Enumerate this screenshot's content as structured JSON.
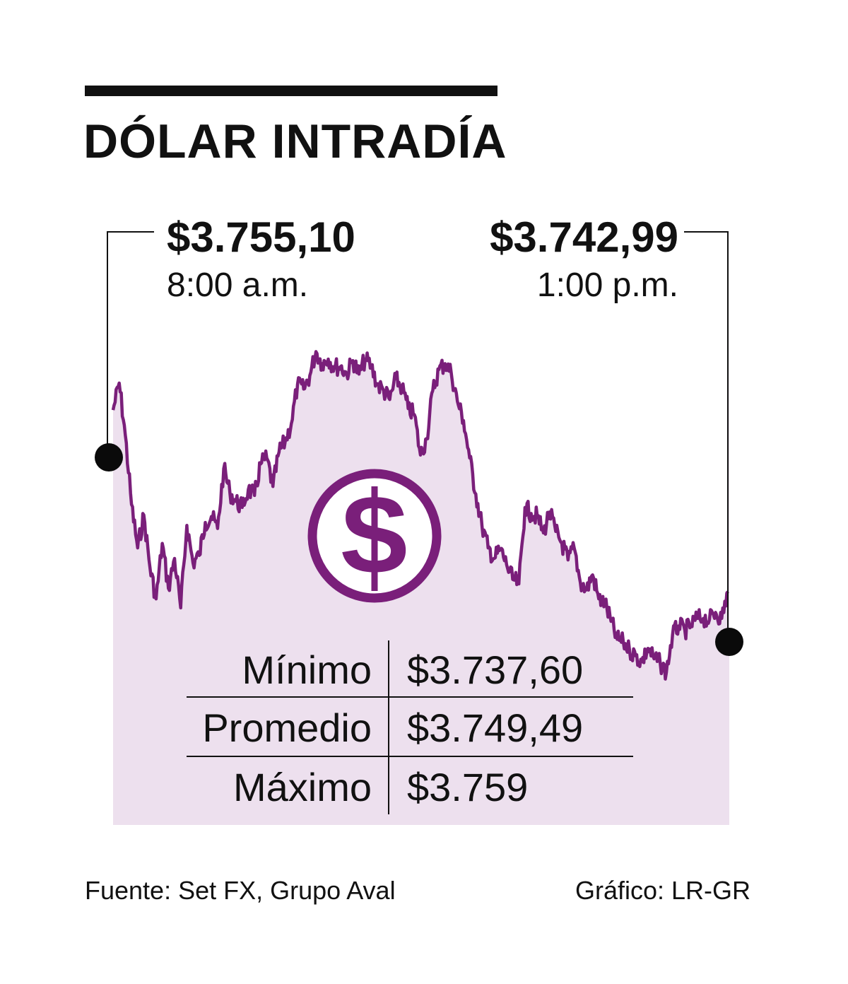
{
  "title": "DÓLAR INTRADÍA",
  "open": {
    "price": "$3.755,10",
    "time": "8:00 a.m."
  },
  "close": {
    "price": "$3.742,99",
    "time": "1:00 p.m."
  },
  "stats": [
    {
      "label": "Mínimo",
      "value": "$3.737,60"
    },
    {
      "label": "Promedio",
      "value": "$3.749,49"
    },
    {
      "label": "Máximo",
      "value": "$3.759"
    }
  ],
  "footer": {
    "source": "Fuente: Set FX, Grupo Aval",
    "credit": "Gráfico: LR-GR"
  },
  "icon": "dollar-coin-icon",
  "colors": {
    "line": "#7a1f7a",
    "area": "#ede0ee",
    "text": "#111111"
  },
  "chart_data": {
    "type": "area",
    "x_range": [
      "8:00 a.m.",
      "1:00 p.m."
    ],
    "ylim": [
      3736,
      3761
    ],
    "x": [
      0.0,
      0.01,
      0.02,
      0.03,
      0.04,
      0.05,
      0.06,
      0.07,
      0.08,
      0.09,
      0.1,
      0.11,
      0.12,
      0.13,
      0.14,
      0.15,
      0.16,
      0.17,
      0.18,
      0.19,
      0.2,
      0.21,
      0.22,
      0.23,
      0.24,
      0.25,
      0.26,
      0.27,
      0.28,
      0.29,
      0.3,
      0.31,
      0.32,
      0.33,
      0.34,
      0.35,
      0.36,
      0.37,
      0.38,
      0.39,
      0.4,
      0.41,
      0.42,
      0.43,
      0.44,
      0.45,
      0.46,
      0.47,
      0.48,
      0.49,
      0.5,
      0.51,
      0.52,
      0.53,
      0.54,
      0.55,
      0.56,
      0.57,
      0.58,
      0.59,
      0.6,
      0.61,
      0.62,
      0.63,
      0.64,
      0.65,
      0.66,
      0.67,
      0.68,
      0.69,
      0.7,
      0.71,
      0.72,
      0.73,
      0.74,
      0.75,
      0.76,
      0.77,
      0.78,
      0.79,
      0.8,
      0.81,
      0.82,
      0.83,
      0.84,
      0.85,
      0.86,
      0.87,
      0.88,
      0.89,
      0.9,
      0.91,
      0.92,
      0.93,
      0.94,
      0.95,
      0.96,
      0.97,
      0.98,
      0.99,
      1.0
    ],
    "y": [
      3755.1,
      3756.9,
      3753.4,
      3748.8,
      3745.9,
      3748.1,
      3744.6,
      3742.5,
      3746.2,
      3743.2,
      3745.2,
      3741.9,
      3747.4,
      3744.9,
      3745.4,
      3747.6,
      3748.0,
      3747.2,
      3751.2,
      3749.6,
      3749.0,
      3748.6,
      3749.8,
      3749.4,
      3751.5,
      3751.9,
      3750.0,
      3752.3,
      3753.0,
      3754.2,
      3756.8,
      3756.5,
      3757.4,
      3759.0,
      3758.2,
      3758.5,
      3758.0,
      3758.0,
      3757.5,
      3758.4,
      3757.5,
      3758.5,
      3758.0,
      3756.8,
      3756.4,
      3755.8,
      3757.2,
      3756.6,
      3755.2,
      3754.8,
      3752.1,
      3753.2,
      3756.4,
      3757.8,
      3758.2,
      3757.6,
      3755.7,
      3754.4,
      3751.9,
      3749.5,
      3747.4,
      3745.9,
      3745.2,
      3745.8,
      3744.8,
      3743.8,
      3743.5,
      3748.6,
      3748.2,
      3748.0,
      3746.9,
      3748.3,
      3747.0,
      3746.2,
      3745.1,
      3745.9,
      3743.6,
      3743.1,
      3744.1,
      3742.5,
      3742.2,
      3741.0,
      3739.8,
      3739.6,
      3739.1,
      3738.7,
      3738.3,
      3739.2,
      3738.5,
      3738.2,
      3737.6,
      3740.1,
      3740.7,
      3740.4,
      3740.7,
      3741.2,
      3741.2,
      3741.1,
      3741.6,
      3741.2,
      3742.99
    ]
  }
}
